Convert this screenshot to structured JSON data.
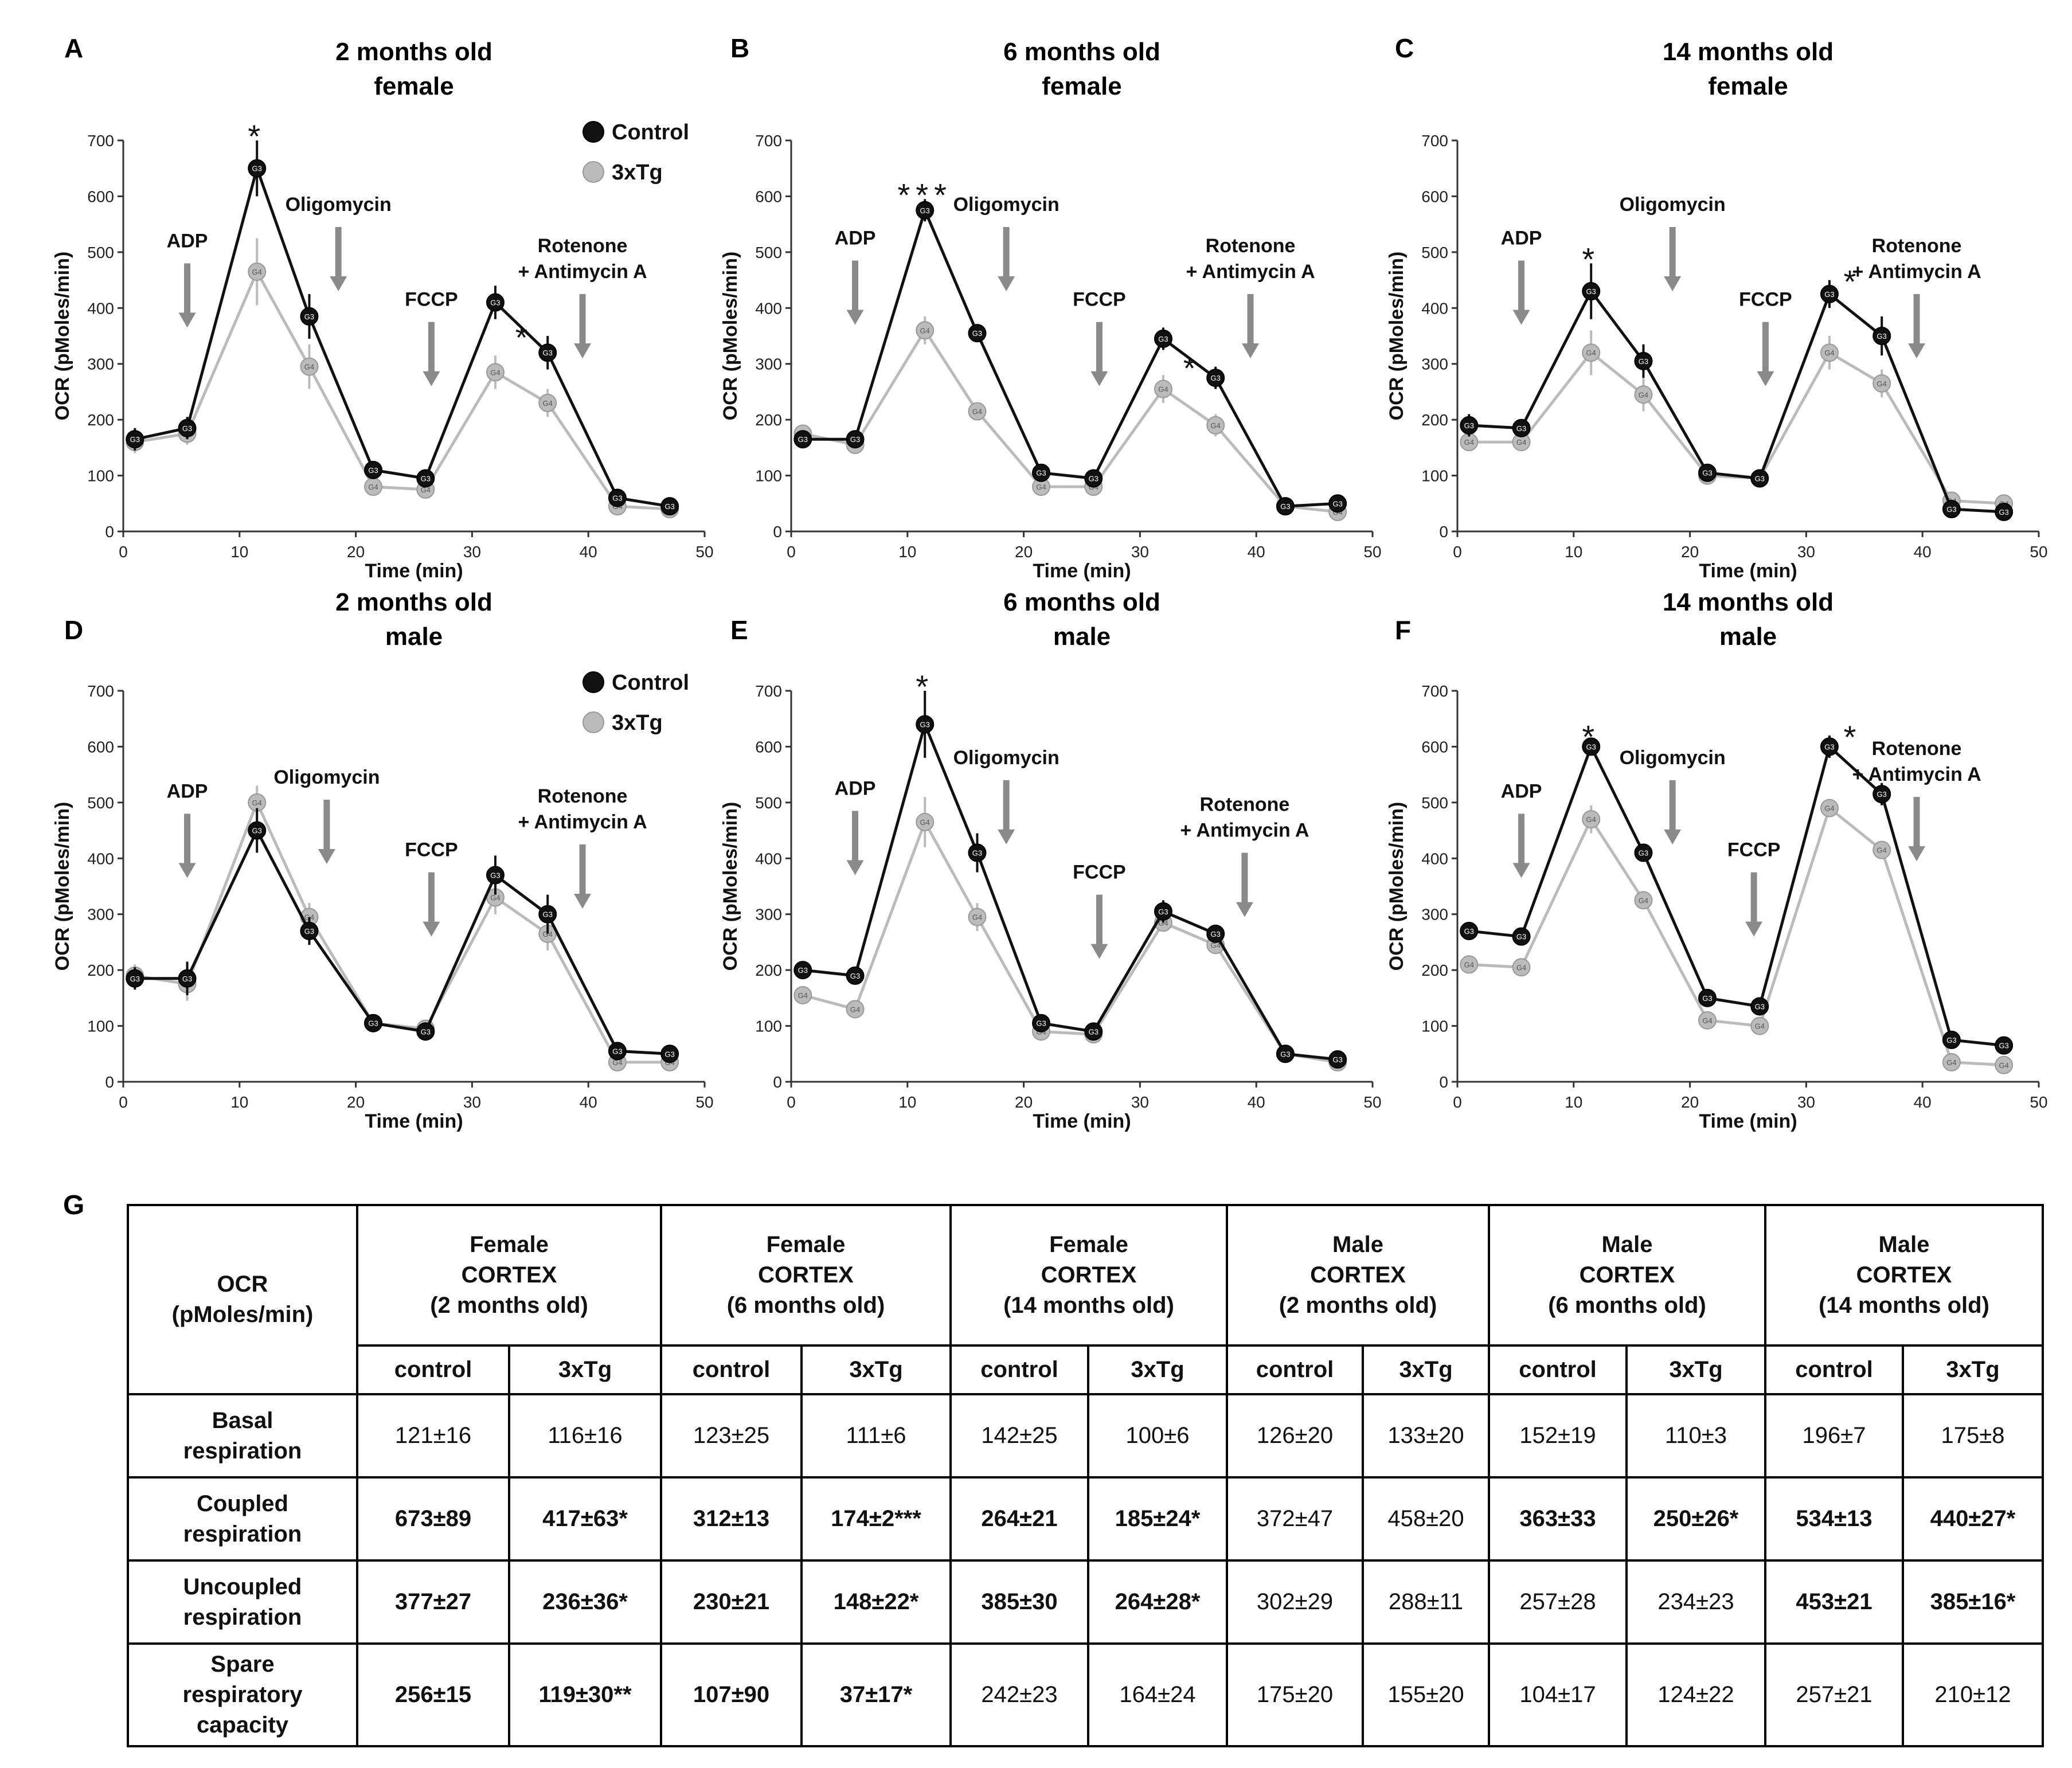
{
  "colors": {
    "control": "#111111",
    "tg": "#bbbbbb",
    "arrow": "#8a8a8a"
  },
  "marker_labels": {
    "control": "G3",
    "tg": "G4"
  },
  "chart_data": [
    {
      "type": "line",
      "letter": "A",
      "title": [
        "2 months old",
        "female"
      ],
      "xlabel": "Time (min)",
      "ylabel": "OCR (pMoles/min)",
      "xlim": [
        0,
        50
      ],
      "ylim": [
        0,
        700
      ],
      "xticks": [
        0,
        10,
        20,
        30,
        40,
        50
      ],
      "yticks": [
        0,
        100,
        200,
        300,
        400,
        500,
        600,
        700
      ],
      "legend": [
        "Control",
        "3xTg"
      ],
      "x": [
        1,
        5.5,
        11.5,
        16,
        21.5,
        26,
        32,
        36.5,
        42.5,
        47
      ],
      "series": [
        {
          "name": "Control",
          "values": [
            165,
            185,
            650,
            385,
            110,
            95,
            410,
            320,
            60,
            45
          ],
          "errors": [
            20,
            20,
            50,
            40,
            15,
            15,
            30,
            30,
            10,
            10
          ]
        },
        {
          "name": "3xTg",
          "values": [
            160,
            175,
            465,
            295,
            80,
            75,
            285,
            230,
            45,
            40
          ],
          "errors": [
            20,
            20,
            60,
            40,
            15,
            15,
            30,
            25,
            10,
            10
          ]
        }
      ],
      "injections": [
        {
          "label": "ADP",
          "x": 5.5,
          "y_top": 480,
          "y_bot": 365
        },
        {
          "label": "Oligomycin",
          "x": 18.5,
          "y_top": 545,
          "y_bot": 430
        },
        {
          "label": "FCCP",
          "x": 26.5,
          "y_top": 375,
          "y_bot": 260
        },
        {
          "label": "Rotenone\n+ Antimycin A",
          "x": 39.5,
          "y_top": 425,
          "y_bot": 310
        }
      ],
      "sig": [
        {
          "text": "*",
          "x": 11.5
        },
        {
          "text": "*",
          "x": 34.5
        }
      ]
    },
    {
      "type": "line",
      "letter": "B",
      "title": [
        "6 months old",
        "female"
      ],
      "xlabel": "Time (min)",
      "ylabel": "OCR (pMoles/min)",
      "xlim": [
        0,
        50
      ],
      "ylim": [
        0,
        700
      ],
      "xticks": [
        0,
        10,
        20,
        30,
        40,
        50
      ],
      "yticks": [
        0,
        100,
        200,
        300,
        400,
        500,
        600,
        700
      ],
      "legend": null,
      "x": [
        1,
        5.5,
        11.5,
        16,
        21.5,
        26,
        32,
        36.5,
        42.5,
        47
      ],
      "series": [
        {
          "name": "Control",
          "values": [
            165,
            165,
            575,
            355,
            105,
            95,
            345,
            275,
            45,
            50
          ],
          "errors": [
            15,
            15,
            20,
            15,
            10,
            10,
            20,
            20,
            5,
            5
          ]
        },
        {
          "name": "3xTg",
          "values": [
            175,
            155,
            360,
            215,
            80,
            80,
            255,
            190,
            45,
            35
          ],
          "errors": [
            15,
            15,
            25,
            15,
            10,
            10,
            25,
            20,
            5,
            5
          ]
        }
      ],
      "injections": [
        {
          "label": "ADP",
          "x": 5.5,
          "y_top": 485,
          "y_bot": 370
        },
        {
          "label": "Oligomycin",
          "x": 18.5,
          "y_top": 545,
          "y_bot": 430
        },
        {
          "label": "FCCP",
          "x": 26.5,
          "y_top": 375,
          "y_bot": 260
        },
        {
          "label": "Rotenone\n+ Antimycin A",
          "x": 39.5,
          "y_top": 425,
          "y_bot": 310
        }
      ],
      "sig": [
        {
          "text": "***",
          "x": 11.5
        },
        {
          "text": "*",
          "x": 34.5
        }
      ]
    },
    {
      "type": "line",
      "letter": "C",
      "title": [
        "14 months old",
        "female"
      ],
      "xlabel": "Time (min)",
      "ylabel": "OCR (pMoles/min)",
      "xlim": [
        0,
        50
      ],
      "ylim": [
        0,
        700
      ],
      "xticks": [
        0,
        10,
        20,
        30,
        40,
        50
      ],
      "yticks": [
        0,
        100,
        200,
        300,
        400,
        500,
        600,
        700
      ],
      "legend": null,
      "x": [
        1,
        5.5,
        11.5,
        16,
        21.5,
        26,
        32,
        36.5,
        42.5,
        47
      ],
      "series": [
        {
          "name": "Control",
          "values": [
            190,
            185,
            430,
            305,
            105,
            95,
            425,
            350,
            40,
            35
          ],
          "errors": [
            20,
            15,
            50,
            30,
            10,
            10,
            25,
            35,
            5,
            5
          ]
        },
        {
          "name": "3xTg",
          "values": [
            160,
            160,
            320,
            245,
            100,
            95,
            320,
            265,
            55,
            50
          ],
          "errors": [
            15,
            15,
            40,
            30,
            10,
            10,
            30,
            25,
            5,
            5
          ]
        }
      ],
      "injections": [
        {
          "label": "ADP",
          "x": 5.5,
          "y_top": 485,
          "y_bot": 370
        },
        {
          "label": "Oligomycin",
          "x": 18.5,
          "y_top": 545,
          "y_bot": 430
        },
        {
          "label": "FCCP",
          "x": 26.5,
          "y_top": 375,
          "y_bot": 260
        },
        {
          "label": "Rotenone\n+ Antimycin A",
          "x": 39.5,
          "y_top": 425,
          "y_bot": 310
        }
      ],
      "sig": [
        {
          "text": "*",
          "x": 11.5
        },
        {
          "text": "*",
          "x": 34
        }
      ]
    },
    {
      "type": "line",
      "letter": "D",
      "title": [
        "2 months old",
        "male"
      ],
      "xlabel": "Time (min)",
      "ylabel": "OCR (pMoles/min)",
      "xlim": [
        0,
        50
      ],
      "ylim": [
        0,
        700
      ],
      "xticks": [
        0,
        10,
        20,
        30,
        40,
        50
      ],
      "yticks": [
        0,
        100,
        200,
        300,
        400,
        500,
        600,
        700
      ],
      "legend": [
        "Control",
        "3xTg"
      ],
      "x": [
        1,
        5.5,
        11.5,
        16,
        21.5,
        26,
        32,
        36.5,
        42.5,
        47
      ],
      "series": [
        {
          "name": "Control",
          "values": [
            185,
            185,
            450,
            270,
            105,
            90,
            370,
            300,
            55,
            50
          ],
          "errors": [
            20,
            30,
            40,
            25,
            10,
            10,
            35,
            35,
            10,
            10
          ]
        },
        {
          "name": "3xTg",
          "values": [
            190,
            175,
            500,
            295,
            105,
            95,
            330,
            265,
            35,
            35
          ],
          "errors": [
            20,
            30,
            30,
            25,
            10,
            10,
            30,
            30,
            10,
            10
          ]
        }
      ],
      "injections": [
        {
          "label": "ADP",
          "x": 5.5,
          "y_top": 480,
          "y_bot": 365
        },
        {
          "label": "Oligomycin",
          "x": 17.5,
          "y_top": 505,
          "y_bot": 390
        },
        {
          "label": "FCCP",
          "x": 26.5,
          "y_top": 375,
          "y_bot": 260
        },
        {
          "label": "Rotenone\n+ Antimycin A",
          "x": 39.5,
          "y_top": 425,
          "y_bot": 310
        }
      ],
      "sig": []
    },
    {
      "type": "line",
      "letter": "E",
      "title": [
        "6 months old",
        "male"
      ],
      "xlabel": "Time (min)",
      "ylabel": "OCR (pMoles/min)",
      "xlim": [
        0,
        50
      ],
      "ylim": [
        0,
        700
      ],
      "xticks": [
        0,
        10,
        20,
        30,
        40,
        50
      ],
      "yticks": [
        0,
        100,
        200,
        300,
        400,
        500,
        600,
        700
      ],
      "legend": null,
      "x": [
        1,
        5.5,
        11.5,
        16,
        21.5,
        26,
        32,
        36.5,
        42.5,
        47
      ],
      "series": [
        {
          "name": "Control",
          "values": [
            200,
            190,
            640,
            410,
            105,
            90,
            305,
            265,
            50,
            40
          ],
          "errors": [
            10,
            10,
            60,
            35,
            10,
            10,
            20,
            15,
            5,
            5
          ]
        },
        {
          "name": "3xTg",
          "values": [
            155,
            130,
            465,
            295,
            90,
            85,
            285,
            245,
            50,
            35
          ],
          "errors": [
            10,
            10,
            45,
            25,
            10,
            10,
            15,
            15,
            5,
            5
          ]
        }
      ],
      "injections": [
        {
          "label": "ADP",
          "x": 5.5,
          "y_top": 485,
          "y_bot": 370
        },
        {
          "label": "Oligomycin",
          "x": 18.5,
          "y_top": 540,
          "y_bot": 425
        },
        {
          "label": "FCCP",
          "x": 26.5,
          "y_top": 335,
          "y_bot": 220
        },
        {
          "label": "Rotenone\n+ Antimycin A",
          "x": 39,
          "y_top": 410,
          "y_bot": 295
        }
      ],
      "sig": [
        {
          "text": "*",
          "x": 11.5
        }
      ]
    },
    {
      "type": "line",
      "letter": "F",
      "title": [
        "14 months old",
        "male"
      ],
      "xlabel": "Time (min)",
      "ylabel": "OCR (pMoles/min)",
      "xlim": [
        0,
        50
      ],
      "ylim": [
        0,
        700
      ],
      "xticks": [
        0,
        10,
        20,
        30,
        40,
        50
      ],
      "yticks": [
        0,
        100,
        200,
        300,
        400,
        500,
        600,
        700
      ],
      "legend": null,
      "x": [
        1,
        5.5,
        11.5,
        16,
        21.5,
        26,
        32,
        36.5,
        42.5,
        47
      ],
      "series": [
        {
          "name": "Control",
          "values": [
            270,
            260,
            600,
            410,
            150,
            135,
            600,
            515,
            75,
            65
          ],
          "errors": [
            10,
            10,
            10,
            15,
            10,
            10,
            20,
            20,
            5,
            5
          ]
        },
        {
          "name": "3xTg",
          "values": [
            210,
            205,
            470,
            325,
            110,
            100,
            490,
            415,
            35,
            30
          ],
          "errors": [
            10,
            10,
            25,
            15,
            10,
            10,
            15,
            15,
            5,
            5
          ]
        }
      ],
      "injections": [
        {
          "label": "ADP",
          "x": 5.5,
          "y_top": 480,
          "y_bot": 365
        },
        {
          "label": "Oligomycin",
          "x": 18.5,
          "y_top": 540,
          "y_bot": 425
        },
        {
          "label": "FCCP",
          "x": 25.5,
          "y_top": 375,
          "y_bot": 260
        },
        {
          "label": "Rotenone\n+ Antimycin A",
          "x": 39.5,
          "y_top": 510,
          "y_bot": 395
        }
      ],
      "sig": [
        {
          "text": "*",
          "x": 11.5
        },
        {
          "text": "*",
          "x": 34
        }
      ]
    }
  ],
  "table": {
    "letter": "G",
    "corner": "OCR\n(pMoles/min)",
    "groups": [
      "Female\nCORTEX\n(2 months old)",
      "Female\nCORTEX\n(6 months old)",
      "Female\nCORTEX\n(14 months old)",
      "Male\nCORTEX\n(2 months old)",
      "Male\nCORTEX\n(6 months old)",
      "Male\nCORTEX\n(14 months old)"
    ],
    "subheaders": [
      "control",
      "3xTg"
    ],
    "rows": [
      {
        "label": "Basal\nrespiration",
        "cells": [
          "121±16",
          "116±16",
          "123±25",
          "111±6",
          "142±25",
          "100±6",
          "126±20",
          "133±20",
          "152±19",
          "110±3",
          "196±7",
          "175±8"
        ],
        "bold": [
          false,
          false,
          false,
          false,
          false,
          false,
          false,
          false,
          false,
          false,
          false,
          false
        ]
      },
      {
        "label": "Coupled\nrespiration",
        "cells": [
          "673±89",
          "417±63*",
          "312±13",
          "174±2***",
          "264±21",
          "185±24*",
          "372±47",
          "458±20",
          "363±33",
          "250±26*",
          "534±13",
          "440±27*"
        ],
        "bold": [
          true,
          true,
          true,
          true,
          true,
          true,
          false,
          false,
          true,
          true,
          true,
          true
        ]
      },
      {
        "label": "Uncoupled\nrespiration",
        "cells": [
          "377±27",
          "236±36*",
          "230±21",
          "148±22*",
          "385±30",
          "264±28*",
          "302±29",
          "288±11",
          "257±28",
          "234±23",
          "453±21",
          "385±16*"
        ],
        "bold": [
          true,
          true,
          true,
          true,
          true,
          true,
          false,
          false,
          false,
          false,
          true,
          true
        ]
      },
      {
        "label": "Spare\nrespiratory\ncapacity",
        "cells": [
          "256±15",
          "119±30**",
          "107±90",
          "37±17*",
          "242±23",
          "164±24",
          "175±20",
          "155±20",
          "104±17",
          "124±22",
          "257±21",
          "210±12"
        ],
        "bold": [
          true,
          true,
          true,
          true,
          false,
          false,
          false,
          false,
          false,
          false,
          false,
          false
        ]
      }
    ]
  }
}
